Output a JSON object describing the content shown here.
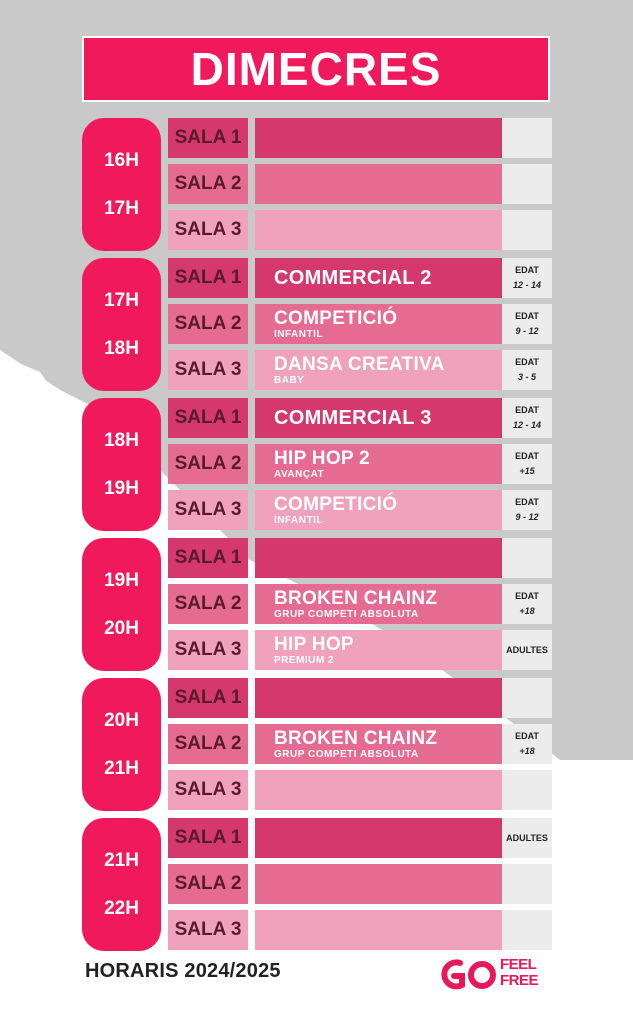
{
  "title": "DIMECRES",
  "blocks": [
    {
      "times": [
        "16H",
        "17H"
      ],
      "rows": [
        {
          "sala": "SALA 1",
          "name": "",
          "sub": "",
          "age1": "",
          "age2": ""
        },
        {
          "sala": "SALA 2",
          "name": "",
          "sub": "",
          "age1": "",
          "age2": ""
        },
        {
          "sala": "SALA 3",
          "name": "",
          "sub": "",
          "age1": "",
          "age2": ""
        }
      ]
    },
    {
      "times": [
        "17H",
        "18H"
      ],
      "rows": [
        {
          "sala": "SALA 1",
          "name": "COMMERCIAL 2",
          "sub": "",
          "age1": "EDAT",
          "age2": "12 - 14"
        },
        {
          "sala": "SALA 2",
          "name": "COMPETICIÓ",
          "sub": "INFANTIL",
          "age1": "EDAT",
          "age2": "9 - 12"
        },
        {
          "sala": "SALA 3",
          "name": "DANSA CREATIVA",
          "sub": "BABY",
          "age1": "EDAT",
          "age2": "3 - 5"
        }
      ]
    },
    {
      "times": [
        "18H",
        "19H"
      ],
      "rows": [
        {
          "sala": "SALA 1",
          "name": "COMMERCIAL 3",
          "sub": "",
          "age1": "EDAT",
          "age2": "12 - 14"
        },
        {
          "sala": "SALA 2",
          "name": "HIP HOP 2",
          "sub": "AVANÇAT",
          "age1": "EDAT",
          "age2": "+15"
        },
        {
          "sala": "SALA 3",
          "name": "COMPETICIÓ",
          "sub": "INFANTIL",
          "age1": "EDAT",
          "age2": "9 - 12"
        }
      ]
    },
    {
      "times": [
        "19H",
        "20H"
      ],
      "rows": [
        {
          "sala": "SALA 1",
          "name": "",
          "sub": "",
          "age1": "",
          "age2": ""
        },
        {
          "sala": "SALA 2",
          "name": "BROKEN CHAINZ",
          "sub": "GRUP COMPETI ABSOLUTA",
          "age1": "EDAT",
          "age2": "+18"
        },
        {
          "sala": "SALA 3",
          "name": "HIP HOP",
          "sub": "PREMIUM 2",
          "age1": "ADULTES",
          "age2": ""
        }
      ]
    },
    {
      "times": [
        "20H",
        "21H"
      ],
      "rows": [
        {
          "sala": "SALA 1",
          "name": "",
          "sub": "",
          "age1": "",
          "age2": ""
        },
        {
          "sala": "SALA 2",
          "name": "BROKEN CHAINZ",
          "sub": "GRUP COMPETI ABSOLUTA",
          "age1": "EDAT",
          "age2": "+18"
        },
        {
          "sala": "SALA 3",
          "name": "",
          "sub": "",
          "age1": "",
          "age2": ""
        }
      ]
    },
    {
      "times": [
        "21H",
        "22H"
      ],
      "rows": [
        {
          "sala": "SALA 1",
          "name": "",
          "sub": "",
          "age1": "ADULTES",
          "age2": ""
        },
        {
          "sala": "SALA 2",
          "name": "",
          "sub": "",
          "age1": "",
          "age2": ""
        },
        {
          "sala": "SALA 3",
          "name": "",
          "sub": "",
          "age1": "",
          "age2": ""
        }
      ]
    }
  ],
  "footer": "HORARIS 2024/2025",
  "logo": {
    "line1": "FEEL",
    "line2": "FREE"
  },
  "colors": {
    "accent": "#f0195c",
    "row1": "#d4386c",
    "row2": "#e56b93",
    "row3": "#f0a1bc",
    "age_cell": "#ececec"
  }
}
